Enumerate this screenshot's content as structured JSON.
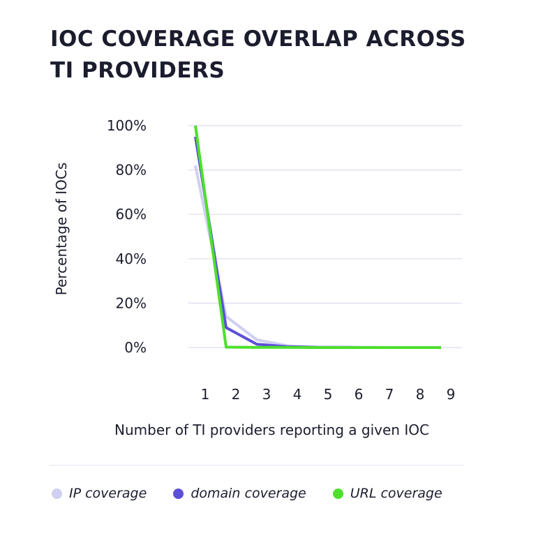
{
  "chart_data": {
    "type": "line",
    "title_lines": [
      "IOC COVERAGE OVERLAP ACROSS",
      "TI PROVIDERS"
    ],
    "xlabel": "Number of TI providers reporting a given IOC",
    "ylabel": "Percentage of IOCs",
    "x": [
      1,
      2,
      3,
      4,
      5,
      6,
      7,
      8,
      9
    ],
    "y_ticks": [
      "0%",
      "20%",
      "40%",
      "60%",
      "80%",
      "100%"
    ],
    "x_ticks": [
      "1",
      "2",
      "3",
      "4",
      "5",
      "6",
      "7",
      "8",
      "9"
    ],
    "ylim": [
      0,
      100
    ],
    "grid": "horizontal",
    "legend_position": "bottom",
    "series": [
      {
        "name": "IP coverage",
        "color": "#cfcff2",
        "values": [
          82,
          14,
          3.5,
          0.8,
          0.2,
          0.1,
          0.05,
          0,
          0
        ]
      },
      {
        "name": "domain coverage",
        "color": "#5c4fd8",
        "values": [
          95,
          9,
          1.5,
          0.4,
          0.1,
          0.05,
          0,
          0,
          0
        ]
      },
      {
        "name": "URL coverage",
        "color": "#4de02c",
        "values": [
          100,
          0.2,
          0.1,
          0.05,
          0,
          0,
          0,
          0,
          0
        ]
      }
    ]
  }
}
